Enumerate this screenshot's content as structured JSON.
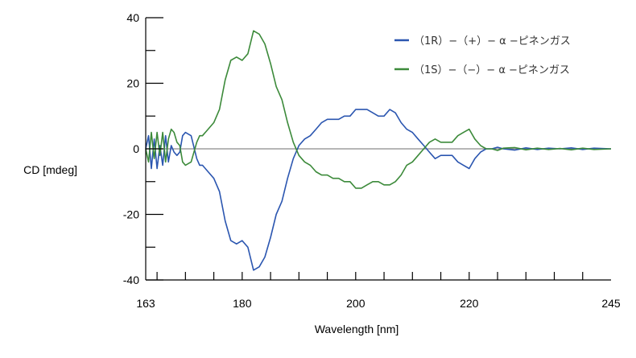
{
  "chart_data": {
    "type": "line",
    "xlabel": "Wavelength [nm]",
    "ylabel": "CD [mdeg]",
    "xlim": [
      163,
      245
    ],
    "ylim": [
      -40,
      40
    ],
    "x_ticks": [
      163,
      180,
      200,
      220,
      245
    ],
    "x_tick_labels": [
      "163",
      "180",
      "200",
      "220",
      "245"
    ],
    "y_ticks": [
      40,
      20,
      0,
      -20,
      -40
    ],
    "y_tick_labels": [
      "40",
      "20",
      "0",
      "-20",
      "-40"
    ],
    "zero_line": true,
    "legend_position": "top-right",
    "series": [
      {
        "name": "（1R）−（+）− α −ピネンガス",
        "color": "#2b56b0",
        "x": [
          163,
          163.5,
          164,
          164.5,
          165,
          165.5,
          166,
          166.5,
          167,
          167.5,
          168,
          168.5,
          169,
          169.5,
          170,
          171,
          172,
          172.5,
          173,
          174,
          175,
          176,
          177,
          178,
          179,
          180,
          181,
          182,
          183,
          184,
          185,
          186,
          187,
          188,
          189,
          190,
          191,
          192,
          193,
          194,
          195,
          196,
          197,
          198,
          199,
          200,
          201,
          202,
          203,
          204,
          205,
          206,
          207,
          208,
          209,
          210,
          211,
          212,
          213,
          214,
          215,
          216,
          217,
          218,
          219,
          220,
          221,
          222,
          223,
          224,
          225,
          226,
          228,
          230,
          232,
          234,
          236,
          238,
          240,
          242,
          245
        ],
        "y": [
          0,
          4,
          -6,
          3,
          -6,
          1,
          -5,
          4,
          -4,
          1,
          -1,
          -2,
          -1,
          4,
          5,
          4,
          -3,
          -5,
          -5,
          -7,
          -9,
          -13,
          -22,
          -28,
          -29,
          -28,
          -30,
          -37,
          -36,
          -33,
          -27,
          -20,
          -16,
          -9,
          -3,
          1,
          3,
          4,
          6,
          8,
          9,
          9,
          9,
          10,
          10,
          12,
          12,
          12,
          11,
          10,
          10,
          12,
          11,
          8,
          6,
          5,
          3,
          1,
          -1,
          -3,
          -2,
          -2,
          -2,
          -4,
          -5,
          -6,
          -3,
          -1,
          0,
          0,
          0.5,
          0,
          -0.4,
          0.3,
          -0.2,
          0.2,
          0,
          0.3,
          -0.2,
          0.2,
          0
        ]
      },
      {
        "name": "（1S）−（−）− α −ピネンガス",
        "color": "#3c8a3a",
        "x": [
          163,
          163.5,
          164,
          164.5,
          165,
          165.5,
          166,
          166.5,
          167,
          167.5,
          168,
          168.5,
          169,
          169.5,
          170,
          171,
          172,
          172.5,
          173,
          174,
          175,
          176,
          177,
          178,
          179,
          180,
          181,
          182,
          183,
          184,
          185,
          186,
          187,
          188,
          189,
          190,
          191,
          192,
          193,
          194,
          195,
          196,
          197,
          198,
          199,
          200,
          201,
          202,
          203,
          204,
          205,
          206,
          207,
          208,
          209,
          210,
          211,
          212,
          213,
          214,
          215,
          216,
          217,
          218,
          219,
          220,
          221,
          222,
          223,
          224,
          225,
          226,
          228,
          230,
          232,
          234,
          236,
          238,
          240,
          242,
          245
        ],
        "y": [
          0,
          -4,
          5,
          -3,
          5,
          -2,
          5,
          -4,
          3,
          6,
          5,
          2,
          1,
          -4,
          -5,
          -4,
          2,
          4,
          4,
          6,
          8,
          12,
          21,
          27,
          28,
          27,
          29,
          36,
          35,
          32,
          26,
          19,
          15,
          8,
          2,
          -2,
          -4,
          -5,
          -7,
          -8,
          -8,
          -9,
          -9,
          -10,
          -10,
          -12,
          -12,
          -11,
          -10,
          -10,
          -11,
          -11,
          -10,
          -8,
          -5,
          -4,
          -2,
          0,
          2,
          3,
          2,
          2,
          2,
          4,
          5,
          6,
          3,
          1,
          0,
          0,
          -0.5,
          0.2,
          0.4,
          -0.3,
          0.2,
          -0.2,
          0.1,
          -0.3,
          0.2,
          -0.2,
          0
        ]
      }
    ]
  }
}
